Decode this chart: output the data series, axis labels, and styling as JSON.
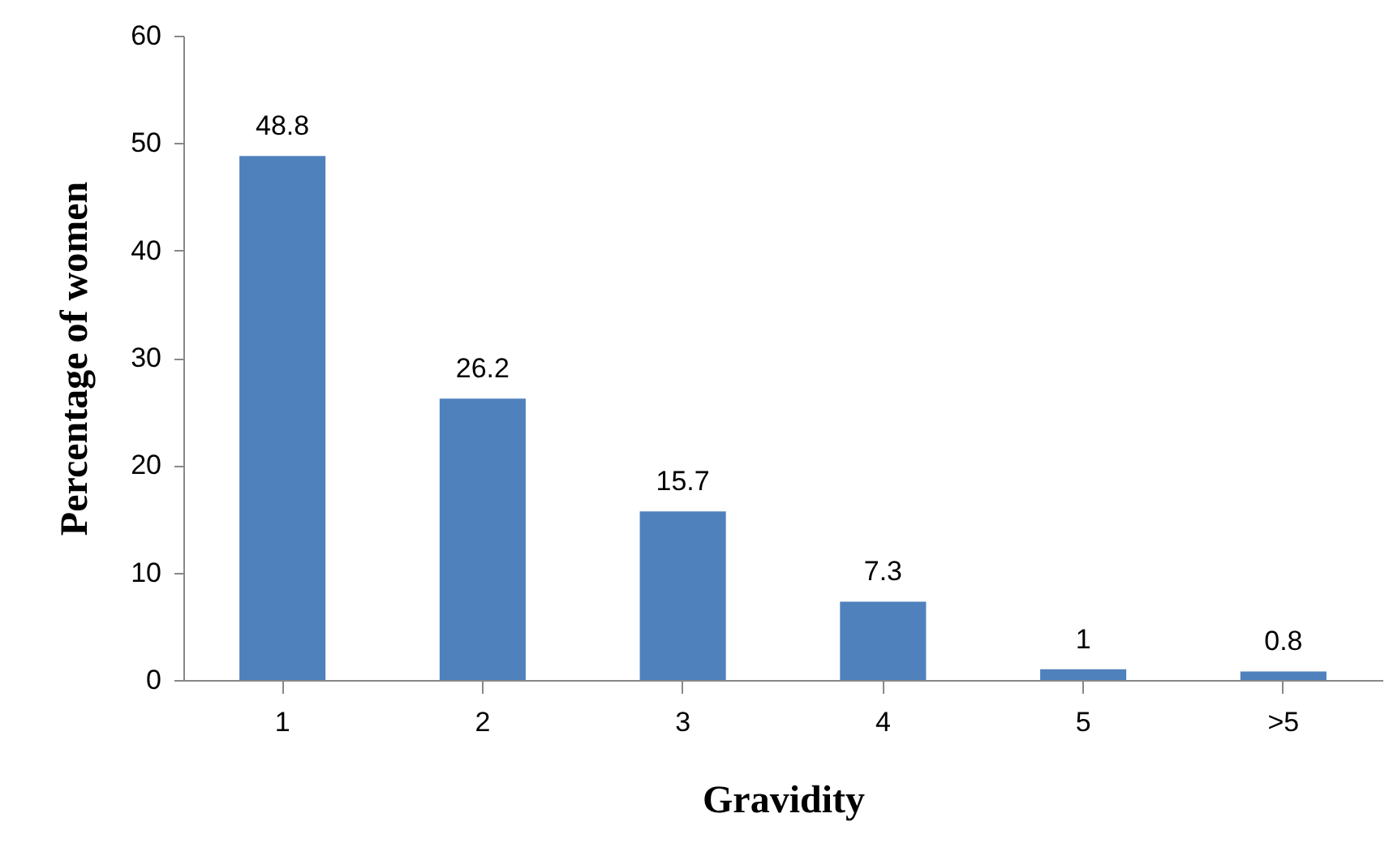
{
  "chart_data": {
    "type": "bar",
    "xlabel": "Gravidity",
    "ylabel": "Percentage of women",
    "categories": [
      "1",
      "2",
      "3",
      "4",
      "5",
      ">5"
    ],
    "values": [
      48.8,
      26.2,
      15.7,
      7.3,
      1,
      0.8
    ],
    "color": "#4f81bd",
    "ylim": [
      0,
      60
    ],
    "yticks": [
      0,
      10,
      20,
      30,
      40,
      50,
      60
    ],
    "data_labels": true,
    "grid": false
  }
}
